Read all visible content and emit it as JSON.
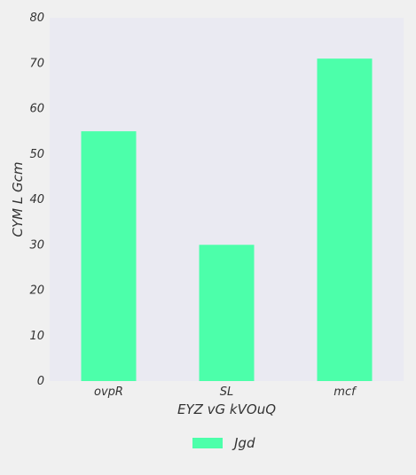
{
  "chart_data": {
    "type": "bar",
    "categories": [
      "ovpR",
      "SL",
      "mcf"
    ],
    "series": [
      {
        "name": "Jgd",
        "values": [
          55,
          30,
          71
        ]
      }
    ],
    "title": "",
    "xlabel": "EYZ  vG kVOuQ",
    "ylabel": "CYM L Gcm",
    "ylim": [
      0,
      80
    ],
    "yticks": [
      0,
      10,
      20,
      30,
      40,
      50,
      60,
      70,
      80
    ],
    "grid": false,
    "legend_position": "bottom-center",
    "colors": {
      "bar": "#4cffaa",
      "plot_background": "#eaeaf2",
      "page_background": "#f0f0f0",
      "text": "#333333"
    }
  }
}
